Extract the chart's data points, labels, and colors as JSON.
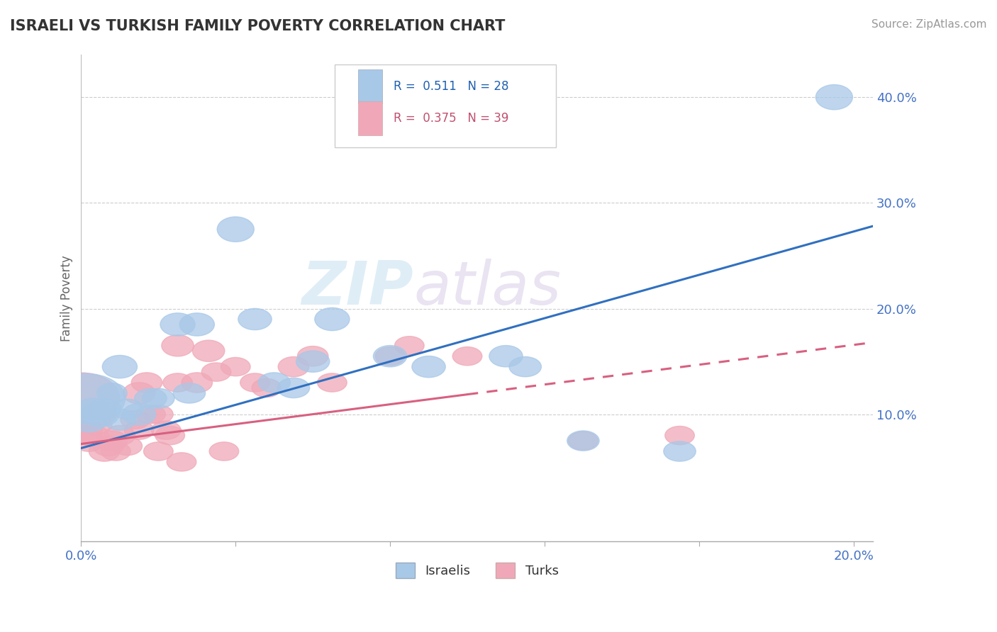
{
  "title": "ISRAELI VS TURKISH FAMILY POVERTY CORRELATION CHART",
  "source": "Source: ZipAtlas.com",
  "xlim": [
    0.0,
    0.205
  ],
  "ylim": [
    -0.02,
    0.44
  ],
  "R_israeli": 0.511,
  "N_israeli": 28,
  "R_turkish": 0.375,
  "N_turkish": 39,
  "background_color": "#ffffff",
  "israeli_color": "#a8c8e8",
  "turkish_color": "#f0a8b8",
  "israeli_line_color": "#3070c0",
  "turkish_line_color": "#d86080",
  "israeli_line_x0": 0.0,
  "israeli_line_y0": 0.068,
  "israeli_line_x1": 0.205,
  "israeli_line_y1": 0.278,
  "turkish_line_x0": 0.0,
  "turkish_line_y0": 0.072,
  "turkish_line_x1": 0.205,
  "turkish_line_y1": 0.168,
  "turkish_line_dashed_x0": 0.1,
  "turkish_line_dashed_x1": 0.205,
  "watermark_zip": "ZIP",
  "watermark_atlas": "atlas",
  "watermark_color_zip": "#c8dff0",
  "watermark_color_atlas": "#d8c8e0",
  "israeli_points": [
    [
      0.001,
      0.115,
      120,
      70
    ],
    [
      0.002,
      0.095,
      55,
      35
    ],
    [
      0.003,
      0.105,
      50,
      30
    ],
    [
      0.005,
      0.1,
      55,
      35
    ],
    [
      0.006,
      0.105,
      50,
      30
    ],
    [
      0.008,
      0.12,
      45,
      28
    ],
    [
      0.01,
      0.145,
      52,
      32
    ],
    [
      0.01,
      0.095,
      48,
      30
    ],
    [
      0.012,
      0.105,
      48,
      28
    ],
    [
      0.015,
      0.1,
      50,
      30
    ],
    [
      0.018,
      0.115,
      48,
      28
    ],
    [
      0.02,
      0.115,
      48,
      28
    ],
    [
      0.025,
      0.185,
      52,
      32
    ],
    [
      0.028,
      0.12,
      48,
      28
    ],
    [
      0.03,
      0.185,
      52,
      32
    ],
    [
      0.04,
      0.275,
      55,
      35
    ],
    [
      0.045,
      0.19,
      50,
      30
    ],
    [
      0.05,
      0.13,
      48,
      28
    ],
    [
      0.055,
      0.125,
      48,
      28
    ],
    [
      0.06,
      0.15,
      50,
      30
    ],
    [
      0.065,
      0.19,
      52,
      32
    ],
    [
      0.08,
      0.155,
      50,
      30
    ],
    [
      0.09,
      0.145,
      50,
      30
    ],
    [
      0.11,
      0.155,
      50,
      30
    ],
    [
      0.115,
      0.145,
      48,
      28
    ],
    [
      0.13,
      0.075,
      48,
      28
    ],
    [
      0.155,
      0.065,
      48,
      28
    ],
    [
      0.195,
      0.4,
      55,
      35
    ]
  ],
  "turkish_points": [
    [
      0.0,
      0.115,
      115,
      72
    ],
    [
      0.001,
      0.085,
      52,
      33
    ],
    [
      0.002,
      0.075,
      48,
      30
    ],
    [
      0.003,
      0.08,
      48,
      30
    ],
    [
      0.004,
      0.09,
      46,
      28
    ],
    [
      0.005,
      0.1,
      48,
      30
    ],
    [
      0.006,
      0.065,
      46,
      28
    ],
    [
      0.007,
      0.07,
      46,
      28
    ],
    [
      0.008,
      0.075,
      46,
      28
    ],
    [
      0.009,
      0.065,
      44,
      26
    ],
    [
      0.01,
      0.08,
      46,
      28
    ],
    [
      0.012,
      0.07,
      44,
      26
    ],
    [
      0.014,
      0.095,
      44,
      26
    ],
    [
      0.015,
      0.12,
      48,
      30
    ],
    [
      0.015,
      0.085,
      44,
      26
    ],
    [
      0.017,
      0.13,
      46,
      28
    ],
    [
      0.018,
      0.1,
      44,
      26
    ],
    [
      0.02,
      0.1,
      44,
      26
    ],
    [
      0.02,
      0.065,
      44,
      26
    ],
    [
      0.022,
      0.085,
      44,
      26
    ],
    [
      0.023,
      0.08,
      44,
      26
    ],
    [
      0.025,
      0.165,
      48,
      30
    ],
    [
      0.025,
      0.13,
      44,
      26
    ],
    [
      0.026,
      0.055,
      44,
      26
    ],
    [
      0.03,
      0.13,
      46,
      28
    ],
    [
      0.033,
      0.16,
      48,
      30
    ],
    [
      0.035,
      0.14,
      44,
      26
    ],
    [
      0.037,
      0.065,
      44,
      26
    ],
    [
      0.04,
      0.145,
      44,
      26
    ],
    [
      0.045,
      0.13,
      44,
      26
    ],
    [
      0.048,
      0.125,
      44,
      26
    ],
    [
      0.055,
      0.145,
      46,
      28
    ],
    [
      0.06,
      0.155,
      46,
      28
    ],
    [
      0.065,
      0.13,
      44,
      26
    ],
    [
      0.08,
      0.155,
      44,
      26
    ],
    [
      0.085,
      0.165,
      44,
      26
    ],
    [
      0.1,
      0.155,
      44,
      26
    ],
    [
      0.13,
      0.075,
      44,
      26
    ],
    [
      0.155,
      0.08,
      44,
      26
    ]
  ]
}
